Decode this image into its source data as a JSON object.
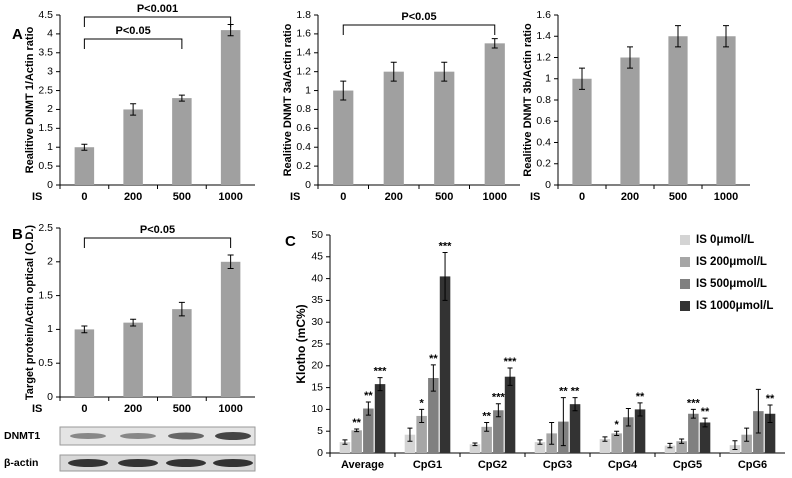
{
  "chart_data": [
    {
      "type": "bar",
      "panel": "A",
      "ylabel": "Realitive DNMT 1/Actin ratio",
      "xlabel": "IS",
      "categories": [
        "0",
        "200",
        "500",
        "1000"
      ],
      "values": [
        1,
        2,
        2.3,
        4.1
      ],
      "errors": [
        0.08,
        0.15,
        0.08,
        0.15
      ],
      "color": "#a0a0a0",
      "ylim": [
        0,
        4.5
      ],
      "yticks": [
        0,
        0.5,
        1,
        1.5,
        2,
        2.5,
        3,
        3.5,
        4,
        4.5
      ],
      "annotations": [
        {
          "text": "P<0.001",
          "from": 0,
          "to": 3
        },
        {
          "text": "P<0.05",
          "from": 0,
          "to": 2
        }
      ]
    },
    {
      "type": "bar",
      "ylabel": "Realitive DNMT 3a/Actin ratio",
      "xlabel": "IS",
      "categories": [
        "0",
        "200",
        "500",
        "1000"
      ],
      "values": [
        1,
        1.2,
        1.2,
        1.5
      ],
      "errors": [
        0.1,
        0.1,
        0.1,
        0.05
      ],
      "color": "#a0a0a0",
      "ylim": [
        0,
        1.8
      ],
      "yticks": [
        0,
        0.2,
        0.4,
        0.6,
        0.8,
        1,
        1.2,
        1.4,
        1.6,
        1.8
      ],
      "annotations": [
        {
          "text": "P<0.05",
          "from": 0,
          "to": 3
        }
      ]
    },
    {
      "type": "bar",
      "ylabel": "Realitive DNMT 3b/Actin ratio",
      "xlabel": "IS",
      "categories": [
        "0",
        "200",
        "500",
        "1000"
      ],
      "values": [
        1,
        1.2,
        1.4,
        1.4
      ],
      "errors": [
        0.1,
        0.1,
        0.1,
        0.1
      ],
      "color": "#a0a0a0",
      "ylim": [
        0,
        1.6
      ],
      "yticks": [
        0,
        0.2,
        0.4,
        0.6,
        0.8,
        1,
        1.2,
        1.4,
        1.6
      ]
    },
    {
      "type": "bar",
      "panel": "B",
      "ylabel": "Target protein/Actin optical (O.D.)",
      "xlabel": "IS",
      "categories": [
        "0",
        "200",
        "500",
        "1000"
      ],
      "values": [
        1,
        1.1,
        1.3,
        2
      ],
      "errors": [
        0.05,
        0.05,
        0.1,
        0.1
      ],
      "color": "#a0a0a0",
      "ylim": [
        0,
        2.5
      ],
      "yticks": [
        0,
        0.5,
        1,
        1.5,
        2,
        2.5
      ],
      "annotations": [
        {
          "text": "P<0.05",
          "from": 0,
          "to": 3
        }
      ],
      "blot_labels": [
        "DNMT1",
        "β-actin"
      ]
    },
    {
      "type": "bar",
      "panel": "C",
      "ylabel": "Klotho (mC%)",
      "categories": [
        "Average",
        "CpG1",
        "CpG2",
        "CpG3",
        "CpG4",
        "CpG5",
        "CpG6"
      ],
      "series": [
        {
          "name": "IS 0μmol/L",
          "color": "#d4d4d4",
          "values": [
            2.5,
            4.2,
            2,
            2.5,
            3.2,
            1.7,
            1.8
          ],
          "errors": [
            0.5,
            1.5,
            0.3,
            0.5,
            0.5,
            0.5,
            1
          ],
          "stars": [
            null,
            null,
            null,
            null,
            null,
            null,
            null
          ]
        },
        {
          "name": "IS 200μmol/L",
          "color": "#a6a6a6",
          "values": [
            5.2,
            8.5,
            6,
            4.5,
            4.5,
            2.7,
            4.2
          ],
          "errors": [
            0.3,
            1.5,
            1,
            2.5,
            0.5,
            0.5,
            1.5
          ],
          "stars": [
            "**",
            "*",
            "**",
            null,
            "*",
            null,
            null
          ]
        },
        {
          "name": "IS 500μmol/L",
          "color": "#808080",
          "values": [
            10.2,
            17.2,
            9.8,
            7.2,
            8.2,
            9,
            9.6
          ],
          "errors": [
            1.5,
            3,
            1.5,
            5.5,
            2,
            1,
            5
          ],
          "stars": [
            "**",
            "**",
            "***",
            "**",
            null,
            "***",
            null
          ]
        },
        {
          "name": "IS 1000μmol/L",
          "color": "#333333",
          "values": [
            15.8,
            40.5,
            17.5,
            11.2,
            10,
            7,
            9
          ],
          "errors": [
            1.5,
            5.5,
            2,
            1.5,
            1.5,
            1,
            2
          ],
          "stars": [
            "***",
            "***",
            "***",
            "**",
            "**",
            "**",
            "**"
          ]
        }
      ],
      "ylim": [
        0,
        50
      ],
      "yticks": [
        0,
        5,
        10,
        15,
        20,
        25,
        30,
        35,
        40,
        45,
        50
      ]
    }
  ]
}
